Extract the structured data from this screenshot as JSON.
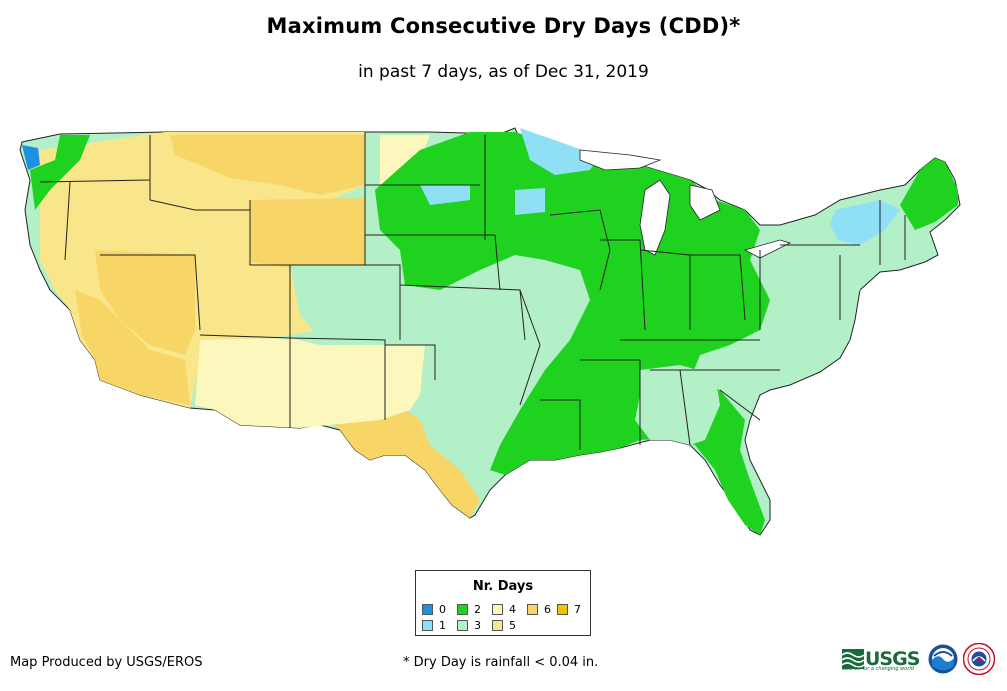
{
  "title": "Maximum Consecutive Dry Days (CDD)*",
  "subtitle": "in past 7 days, as of Dec 31, 2019",
  "legend": {
    "title": "Nr. Days",
    "items": [
      {
        "label": "0",
        "color": "#1e90e0"
      },
      {
        "label": "1",
        "color": "#8fe0f5"
      },
      {
        "label": "2",
        "color": "#1fd21f"
      },
      {
        "label": "3",
        "color": "#b3f0c8"
      },
      {
        "label": "4",
        "color": "#fbf7bd"
      },
      {
        "label": "5",
        "color": "#f9e68a"
      },
      {
        "label": "6",
        "color": "#f7d566"
      },
      {
        "label": "7",
        "color": "#f5c200"
      }
    ]
  },
  "credit": "Map Produced by USGS/EROS",
  "footnote": "* Dry Day is rainfall < 0.04 in.",
  "logos": {
    "usgs": "USGS",
    "usgs_tagline": "science for a changing world"
  }
}
